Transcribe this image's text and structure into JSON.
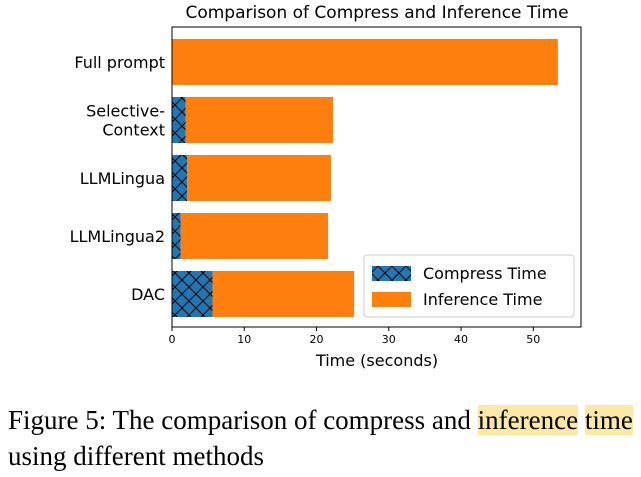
{
  "chart_data": {
    "type": "bar",
    "orientation": "horizontal",
    "stacked": true,
    "title": "Comparison of Compress and Inference Time",
    "xlabel": "Time (seconds)",
    "ylabel": "",
    "xlim": [
      0,
      56.6
    ],
    "xticks": [
      "0",
      "10",
      "20",
      "30",
      "40",
      "50"
    ],
    "categories": [
      [
        "Full prompt"
      ],
      [
        "Selective-",
        "Context"
      ],
      [
        "LLMLingua"
      ],
      [
        "LLMLingua2"
      ],
      [
        "DAC"
      ]
    ],
    "series": [
      {
        "name": "Compress Time",
        "color": "#1f77b4",
        "hatch": "cross",
        "values": [
          0,
          1.9,
          2.1,
          1.2,
          5.6
        ]
      },
      {
        "name": "Inference Time",
        "color": "#ff7f0e",
        "hatch": "none",
        "values": [
          53.4,
          20.4,
          19.9,
          20.4,
          19.6
        ]
      }
    ],
    "grid": false,
    "legend_position": "lower-right"
  },
  "caption": {
    "before": "Figure 5: The comparison of compress and ",
    "highlight_1": "inference",
    "space": " ",
    "highlight_2": "time",
    "after": " using different methods"
  }
}
